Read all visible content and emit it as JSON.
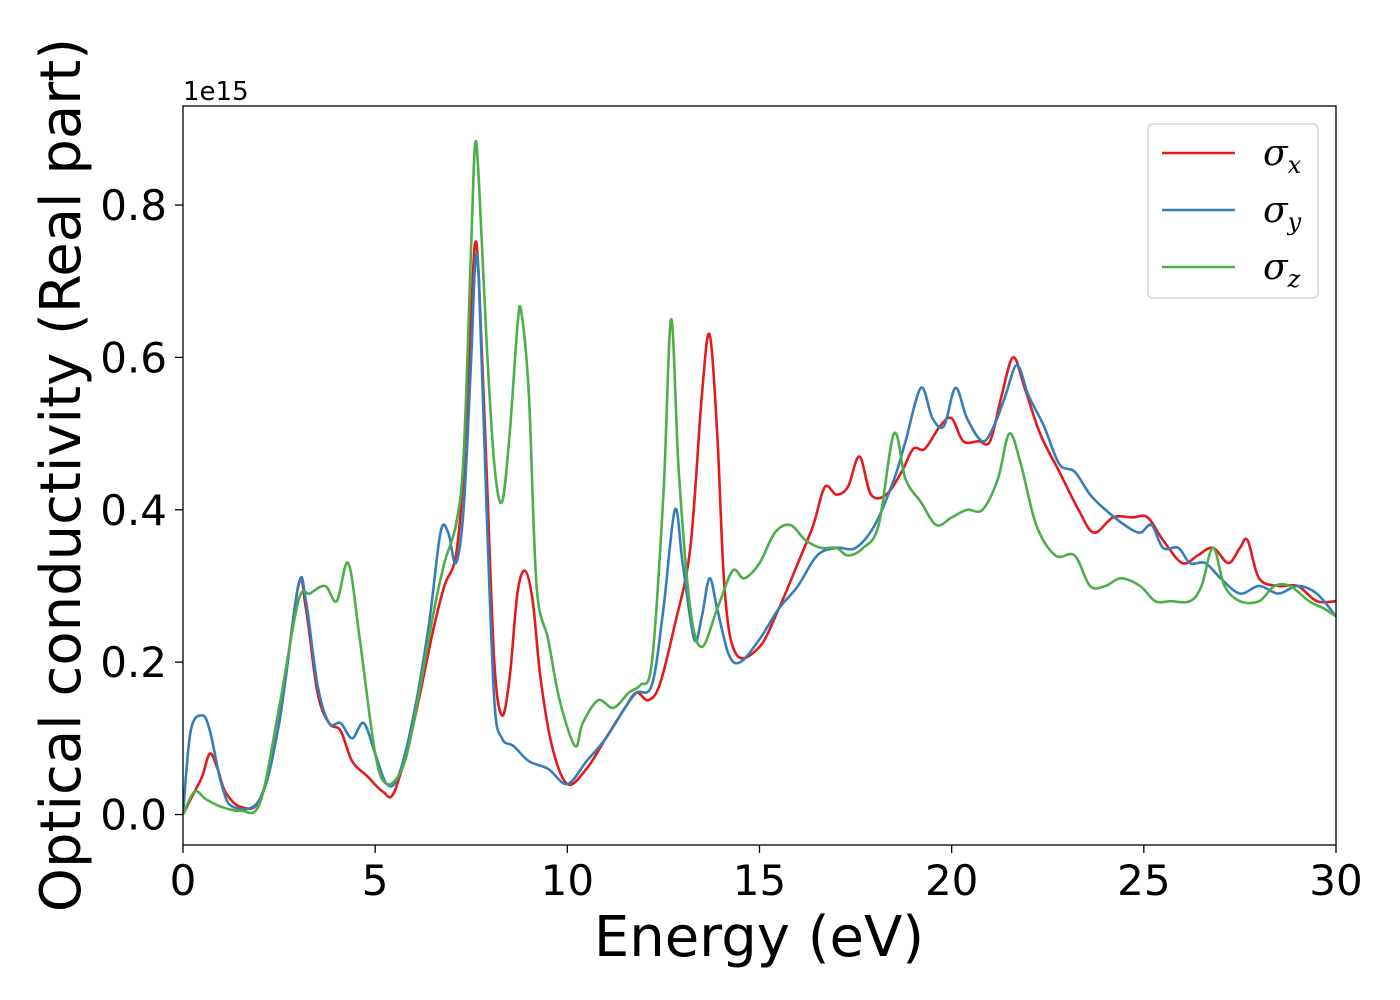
{
  "chart_data": {
    "type": "line",
    "xlabel": "Energy (eV)",
    "ylabel": "Optical conductivity (Real part)",
    "y_offset_label": "1e15",
    "xlim": [
      0,
      30
    ],
    "ylim": [
      -0.04,
      0.93
    ],
    "xticks": [
      0,
      5,
      10,
      15,
      20,
      25,
      30
    ],
    "xtick_labels": [
      "0",
      "5",
      "10",
      "15",
      "20",
      "25",
      "30"
    ],
    "yticks": [
      0.0,
      0.2,
      0.4,
      0.6,
      0.8
    ],
    "ytick_labels": [
      "0.0",
      "0.2",
      "0.4",
      "0.6",
      "0.8"
    ],
    "grid": false,
    "legend_position": "top-right",
    "series": [
      {
        "name": "σx",
        "symbol": "σ",
        "subscript": "x",
        "color": "#e41a1c",
        "points": [
          [
            0,
            0.0
          ],
          [
            0.3,
            0.03
          ],
          [
            0.5,
            0.05
          ],
          [
            0.7,
            0.08
          ],
          [
            0.9,
            0.06
          ],
          [
            1.1,
            0.03
          ],
          [
            1.5,
            0.01
          ],
          [
            2.0,
            0.02
          ],
          [
            2.5,
            0.12
          ],
          [
            3.0,
            0.3
          ],
          [
            3.2,
            0.27
          ],
          [
            3.5,
            0.16
          ],
          [
            3.8,
            0.12
          ],
          [
            4.1,
            0.11
          ],
          [
            4.4,
            0.07
          ],
          [
            4.8,
            0.05
          ],
          [
            5.2,
            0.03
          ],
          [
            5.5,
            0.03
          ],
          [
            6.0,
            0.12
          ],
          [
            6.5,
            0.24
          ],
          [
            6.8,
            0.3
          ],
          [
            7.1,
            0.34
          ],
          [
            7.3,
            0.45
          ],
          [
            7.5,
            0.66
          ],
          [
            7.6,
            0.75
          ],
          [
            7.7,
            0.7
          ],
          [
            7.9,
            0.45
          ],
          [
            8.1,
            0.2
          ],
          [
            8.3,
            0.13
          ],
          [
            8.5,
            0.18
          ],
          [
            8.7,
            0.29
          ],
          [
            8.9,
            0.32
          ],
          [
            9.1,
            0.28
          ],
          [
            9.3,
            0.18
          ],
          [
            9.6,
            0.09
          ],
          [
            10.0,
            0.04
          ],
          [
            10.5,
            0.06
          ],
          [
            11.0,
            0.1
          ],
          [
            11.5,
            0.14
          ],
          [
            11.8,
            0.16
          ],
          [
            12.1,
            0.15
          ],
          [
            12.4,
            0.17
          ],
          [
            12.8,
            0.25
          ],
          [
            13.2,
            0.35
          ],
          [
            13.5,
            0.55
          ],
          [
            13.7,
            0.63
          ],
          [
            13.9,
            0.5
          ],
          [
            14.1,
            0.29
          ],
          [
            14.4,
            0.21
          ],
          [
            15.0,
            0.22
          ],
          [
            15.5,
            0.27
          ],
          [
            16.0,
            0.33
          ],
          [
            16.4,
            0.38
          ],
          [
            16.7,
            0.43
          ],
          [
            17.0,
            0.42
          ],
          [
            17.3,
            0.43
          ],
          [
            17.6,
            0.47
          ],
          [
            17.9,
            0.42
          ],
          [
            18.3,
            0.42
          ],
          [
            18.7,
            0.45
          ],
          [
            19.0,
            0.48
          ],
          [
            19.3,
            0.48
          ],
          [
            19.7,
            0.51
          ],
          [
            20.0,
            0.52
          ],
          [
            20.3,
            0.49
          ],
          [
            20.7,
            0.49
          ],
          [
            21.0,
            0.49
          ],
          [
            21.3,
            0.55
          ],
          [
            21.6,
            0.6
          ],
          [
            21.9,
            0.56
          ],
          [
            22.3,
            0.5
          ],
          [
            22.8,
            0.45
          ],
          [
            23.3,
            0.4
          ],
          [
            23.7,
            0.37
          ],
          [
            24.2,
            0.39
          ],
          [
            24.7,
            0.39
          ],
          [
            25.1,
            0.39
          ],
          [
            25.5,
            0.36
          ],
          [
            26.0,
            0.33
          ],
          [
            26.4,
            0.34
          ],
          [
            26.8,
            0.35
          ],
          [
            27.2,
            0.33
          ],
          [
            27.5,
            0.35
          ],
          [
            27.7,
            0.36
          ],
          [
            28.0,
            0.31
          ],
          [
            28.5,
            0.3
          ],
          [
            29.0,
            0.3
          ],
          [
            29.5,
            0.28
          ],
          [
            30.0,
            0.28
          ]
        ]
      },
      {
        "name": "σy",
        "symbol": "σ",
        "subscript": "y",
        "color": "#377eb8",
        "points": [
          [
            0,
            0.0
          ],
          [
            0.2,
            0.11
          ],
          [
            0.5,
            0.13
          ],
          [
            0.7,
            0.11
          ],
          [
            1.0,
            0.04
          ],
          [
            1.3,
            0.01
          ],
          [
            2.0,
            0.02
          ],
          [
            2.5,
            0.12
          ],
          [
            3.0,
            0.3
          ],
          [
            3.2,
            0.28
          ],
          [
            3.5,
            0.17
          ],
          [
            3.8,
            0.12
          ],
          [
            4.1,
            0.12
          ],
          [
            4.4,
            0.1
          ],
          [
            4.7,
            0.12
          ],
          [
            5.0,
            0.08
          ],
          [
            5.3,
            0.04
          ],
          [
            5.6,
            0.05
          ],
          [
            6.0,
            0.13
          ],
          [
            6.4,
            0.25
          ],
          [
            6.7,
            0.37
          ],
          [
            6.9,
            0.37
          ],
          [
            7.1,
            0.33
          ],
          [
            7.3,
            0.4
          ],
          [
            7.5,
            0.6
          ],
          [
            7.6,
            0.72
          ],
          [
            7.7,
            0.7
          ],
          [
            7.9,
            0.4
          ],
          [
            8.1,
            0.15
          ],
          [
            8.3,
            0.1
          ],
          [
            8.6,
            0.09
          ],
          [
            9.0,
            0.07
          ],
          [
            9.5,
            0.06
          ],
          [
            10.0,
            0.04
          ],
          [
            10.5,
            0.07
          ],
          [
            11.0,
            0.1
          ],
          [
            11.5,
            0.14
          ],
          [
            11.8,
            0.16
          ],
          [
            12.2,
            0.17
          ],
          [
            12.5,
            0.27
          ],
          [
            12.8,
            0.4
          ],
          [
            13.0,
            0.33
          ],
          [
            13.3,
            0.23
          ],
          [
            13.5,
            0.26
          ],
          [
            13.7,
            0.31
          ],
          [
            13.9,
            0.27
          ],
          [
            14.2,
            0.21
          ],
          [
            14.5,
            0.2
          ],
          [
            15.0,
            0.23
          ],
          [
            15.5,
            0.27
          ],
          [
            16.0,
            0.3
          ],
          [
            16.5,
            0.34
          ],
          [
            17.0,
            0.35
          ],
          [
            17.5,
            0.35
          ],
          [
            18.0,
            0.38
          ],
          [
            18.5,
            0.44
          ],
          [
            18.8,
            0.49
          ],
          [
            19.2,
            0.56
          ],
          [
            19.5,
            0.52
          ],
          [
            19.8,
            0.51
          ],
          [
            20.1,
            0.56
          ],
          [
            20.4,
            0.52
          ],
          [
            20.8,
            0.49
          ],
          [
            21.1,
            0.51
          ],
          [
            21.4,
            0.55
          ],
          [
            21.7,
            0.59
          ],
          [
            22.0,
            0.55
          ],
          [
            22.4,
            0.51
          ],
          [
            22.8,
            0.46
          ],
          [
            23.2,
            0.45
          ],
          [
            23.6,
            0.42
          ],
          [
            24.0,
            0.4
          ],
          [
            24.5,
            0.38
          ],
          [
            24.9,
            0.37
          ],
          [
            25.2,
            0.38
          ],
          [
            25.5,
            0.35
          ],
          [
            25.9,
            0.35
          ],
          [
            26.2,
            0.33
          ],
          [
            26.6,
            0.33
          ],
          [
            27.0,
            0.31
          ],
          [
            27.5,
            0.29
          ],
          [
            28.0,
            0.3
          ],
          [
            28.5,
            0.29
          ],
          [
            29.0,
            0.3
          ],
          [
            29.5,
            0.29
          ],
          [
            30.0,
            0.26
          ]
        ]
      },
      {
        "name": "σz",
        "symbol": "σ",
        "subscript": "z",
        "color": "#4daf4a",
        "points": [
          [
            0,
            0.0
          ],
          [
            0.3,
            0.03
          ],
          [
            0.6,
            0.02
          ],
          [
            1.0,
            0.01
          ],
          [
            1.5,
            0.005
          ],
          [
            2.0,
            0.015
          ],
          [
            2.5,
            0.14
          ],
          [
            3.0,
            0.28
          ],
          [
            3.3,
            0.29
          ],
          [
            3.7,
            0.3
          ],
          [
            4.0,
            0.28
          ],
          [
            4.3,
            0.33
          ],
          [
            4.6,
            0.23
          ],
          [
            5.0,
            0.08
          ],
          [
            5.3,
            0.04
          ],
          [
            5.7,
            0.06
          ],
          [
            6.0,
            0.12
          ],
          [
            6.5,
            0.26
          ],
          [
            6.8,
            0.33
          ],
          [
            7.1,
            0.38
          ],
          [
            7.3,
            0.47
          ],
          [
            7.5,
            0.75
          ],
          [
            7.6,
            0.88
          ],
          [
            7.7,
            0.83
          ],
          [
            7.9,
            0.62
          ],
          [
            8.1,
            0.46
          ],
          [
            8.3,
            0.41
          ],
          [
            8.5,
            0.5
          ],
          [
            8.7,
            0.64
          ],
          [
            8.8,
            0.66
          ],
          [
            9.0,
            0.55
          ],
          [
            9.2,
            0.3
          ],
          [
            9.5,
            0.23
          ],
          [
            9.8,
            0.15
          ],
          [
            10.2,
            0.09
          ],
          [
            10.4,
            0.12
          ],
          [
            10.8,
            0.15
          ],
          [
            11.2,
            0.14
          ],
          [
            11.6,
            0.16
          ],
          [
            11.9,
            0.17
          ],
          [
            12.2,
            0.2
          ],
          [
            12.5,
            0.42
          ],
          [
            12.7,
            0.65
          ],
          [
            12.9,
            0.45
          ],
          [
            13.2,
            0.27
          ],
          [
            13.5,
            0.22
          ],
          [
            13.9,
            0.27
          ],
          [
            14.3,
            0.32
          ],
          [
            14.6,
            0.31
          ],
          [
            15.0,
            0.33
          ],
          [
            15.4,
            0.37
          ],
          [
            15.8,
            0.38
          ],
          [
            16.2,
            0.36
          ],
          [
            16.6,
            0.35
          ],
          [
            17.0,
            0.35
          ],
          [
            17.3,
            0.34
          ],
          [
            17.7,
            0.35
          ],
          [
            18.1,
            0.38
          ],
          [
            18.5,
            0.5
          ],
          [
            18.8,
            0.44
          ],
          [
            19.2,
            0.41
          ],
          [
            19.6,
            0.38
          ],
          [
            20.0,
            0.39
          ],
          [
            20.4,
            0.4
          ],
          [
            20.8,
            0.4
          ],
          [
            21.2,
            0.44
          ],
          [
            21.5,
            0.5
          ],
          [
            21.8,
            0.46
          ],
          [
            22.2,
            0.38
          ],
          [
            22.7,
            0.34
          ],
          [
            23.2,
            0.34
          ],
          [
            23.6,
            0.3
          ],
          [
            24.0,
            0.3
          ],
          [
            24.4,
            0.31
          ],
          [
            24.9,
            0.3
          ],
          [
            25.3,
            0.28
          ],
          [
            25.7,
            0.28
          ],
          [
            26.2,
            0.28
          ],
          [
            26.5,
            0.3
          ],
          [
            26.8,
            0.35
          ],
          [
            27.1,
            0.3
          ],
          [
            27.5,
            0.28
          ],
          [
            28.0,
            0.28
          ],
          [
            28.4,
            0.3
          ],
          [
            28.8,
            0.3
          ],
          [
            29.3,
            0.28
          ],
          [
            29.7,
            0.27
          ],
          [
            30.0,
            0.26
          ]
        ]
      }
    ]
  }
}
